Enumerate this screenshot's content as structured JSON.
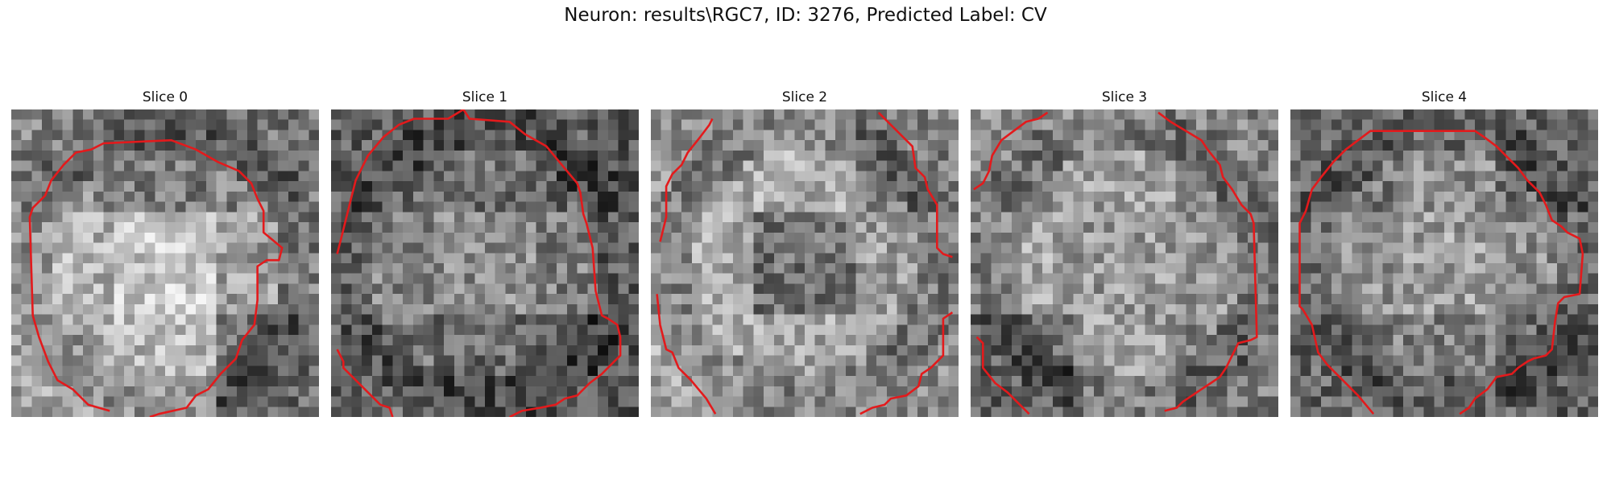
{
  "figure": {
    "title": "Neuron: results\\RGC7, ID: 3276, Predicted Label: CV"
  },
  "colors": {
    "contour": "#e31a1c"
  },
  "panels": [
    {
      "title": "Slice 0",
      "seed": 11,
      "cells": [
        0.55,
        0.48,
        0.5,
        0.7,
        0.78,
        0.62,
        0.68,
        0.72,
        0.45
      ],
      "contour": [
        [
          [
            0.32,
            0.98
          ],
          [
            0.25,
            0.96
          ],
          [
            0.2,
            0.91
          ],
          [
            0.15,
            0.88
          ],
          [
            0.12,
            0.82
          ],
          [
            0.09,
            0.74
          ],
          [
            0.07,
            0.67
          ],
          [
            0.06,
            0.35
          ],
          [
            0.07,
            0.32
          ],
          [
            0.09,
            0.3
          ],
          [
            0.11,
            0.28
          ],
          [
            0.13,
            0.23
          ],
          [
            0.17,
            0.18
          ],
          [
            0.21,
            0.14
          ],
          [
            0.26,
            0.13
          ],
          [
            0.3,
            0.11
          ],
          [
            0.52,
            0.1
          ],
          [
            0.6,
            0.13
          ],
          [
            0.67,
            0.17
          ],
          [
            0.74,
            0.2
          ],
          [
            0.78,
            0.24
          ],
          [
            0.8,
            0.29
          ],
          [
            0.82,
            0.33
          ],
          [
            0.82,
            0.4
          ],
          [
            0.88,
            0.45
          ],
          [
            0.87,
            0.49
          ],
          [
            0.83,
            0.49
          ],
          [
            0.8,
            0.51
          ],
          [
            0.8,
            0.62
          ],
          [
            0.79,
            0.7
          ],
          [
            0.75,
            0.75
          ],
          [
            0.73,
            0.81
          ],
          [
            0.68,
            0.86
          ],
          [
            0.64,
            0.91
          ],
          [
            0.6,
            0.93
          ],
          [
            0.57,
            0.97
          ],
          [
            0.48,
            0.99
          ],
          [
            0.45,
            1.0
          ]
        ]
      ]
    },
    {
      "title": "Slice 1",
      "seed": 23,
      "cells": [
        0.42,
        0.44,
        0.4,
        0.52,
        0.55,
        0.5,
        0.45,
        0.42,
        0.38
      ],
      "contour": [
        [
          [
            0.02,
            0.47
          ],
          [
            0.03,
            0.43
          ],
          [
            0.06,
            0.31
          ],
          [
            0.08,
            0.23
          ],
          [
            0.12,
            0.15
          ],
          [
            0.17,
            0.09
          ],
          [
            0.22,
            0.05
          ],
          [
            0.27,
            0.03
          ],
          [
            0.38,
            0.03
          ],
          [
            0.43,
            0.0
          ]
        ],
        [
          [
            0.43,
            0.0
          ],
          [
            0.45,
            0.03
          ],
          [
            0.58,
            0.04
          ],
          [
            0.63,
            0.08
          ],
          [
            0.7,
            0.12
          ],
          [
            0.75,
            0.18
          ],
          [
            0.8,
            0.24
          ],
          [
            0.81,
            0.27
          ],
          [
            0.82,
            0.34
          ],
          [
            0.83,
            0.37
          ],
          [
            0.85,
            0.45
          ],
          [
            0.86,
            0.59
          ],
          [
            0.87,
            0.63
          ],
          [
            0.88,
            0.67
          ],
          [
            0.9,
            0.68
          ],
          [
            0.93,
            0.7
          ],
          [
            0.94,
            0.74
          ],
          [
            0.94,
            0.8
          ],
          [
            0.92,
            0.82
          ],
          [
            0.88,
            0.86
          ],
          [
            0.84,
            0.89
          ],
          [
            0.8,
            0.93
          ],
          [
            0.76,
            0.94
          ],
          [
            0.73,
            0.96
          ],
          [
            0.68,
            0.97
          ],
          [
            0.62,
            0.98
          ],
          [
            0.58,
            1.0
          ]
        ],
        [
          [
            0.02,
            0.78
          ],
          [
            0.04,
            0.82
          ],
          [
            0.04,
            0.84
          ],
          [
            0.08,
            0.88
          ],
          [
            0.12,
            0.92
          ],
          [
            0.16,
            0.96
          ],
          [
            0.19,
            0.97
          ],
          [
            0.2,
            1.0
          ]
        ]
      ]
    },
    {
      "title": "Slice 2",
      "seed": 37,
      "cells": [
        0.62,
        0.68,
        0.52,
        0.66,
        0.44,
        0.62,
        0.7,
        0.64,
        0.58
      ],
      "contour": [
        [
          [
            0.03,
            0.43
          ],
          [
            0.05,
            0.35
          ],
          [
            0.05,
            0.25
          ],
          [
            0.07,
            0.21
          ],
          [
            0.1,
            0.18
          ],
          [
            0.12,
            0.14
          ],
          [
            0.16,
            0.09
          ],
          [
            0.19,
            0.05
          ],
          [
            0.2,
            0.03
          ]
        ],
        [
          [
            0.74,
            0.01
          ],
          [
            0.79,
            0.06
          ],
          [
            0.85,
            0.12
          ],
          [
            0.86,
            0.19
          ],
          [
            0.89,
            0.22
          ],
          [
            0.9,
            0.26
          ],
          [
            0.93,
            0.31
          ],
          [
            0.93,
            0.45
          ],
          [
            0.95,
            0.47
          ],
          [
            0.98,
            0.48
          ]
        ],
        [
          [
            0.02,
            0.6
          ],
          [
            0.03,
            0.7
          ],
          [
            0.05,
            0.78
          ],
          [
            0.07,
            0.79
          ],
          [
            0.09,
            0.84
          ],
          [
            0.13,
            0.88
          ],
          [
            0.18,
            0.94
          ],
          [
            0.21,
            0.99
          ]
        ],
        [
          [
            0.98,
            0.66
          ],
          [
            0.95,
            0.68
          ],
          [
            0.95,
            0.8
          ],
          [
            0.91,
            0.84
          ],
          [
            0.88,
            0.86
          ],
          [
            0.87,
            0.9
          ],
          [
            0.83,
            0.93
          ],
          [
            0.78,
            0.94
          ],
          [
            0.76,
            0.96
          ],
          [
            0.72,
            0.97
          ],
          [
            0.68,
            0.99
          ]
        ]
      ]
    },
    {
      "title": "Slice 3",
      "seed": 41,
      "cells": [
        0.58,
        0.62,
        0.55,
        0.64,
        0.6,
        0.58,
        0.4,
        0.62,
        0.52
      ],
      "contour": [
        [
          [
            0.01,
            0.26
          ],
          [
            0.04,
            0.24
          ],
          [
            0.06,
            0.2
          ],
          [
            0.07,
            0.15
          ],
          [
            0.1,
            0.1
          ],
          [
            0.14,
            0.07
          ],
          [
            0.18,
            0.04
          ],
          [
            0.22,
            0.03
          ],
          [
            0.25,
            0.01
          ]
        ],
        [
          [
            0.61,
            0.01
          ],
          [
            0.65,
            0.04
          ],
          [
            0.7,
            0.07
          ],
          [
            0.75,
            0.1
          ],
          [
            0.77,
            0.13
          ],
          [
            0.81,
            0.18
          ],
          [
            0.82,
            0.22
          ],
          [
            0.85,
            0.26
          ],
          [
            0.88,
            0.31
          ],
          [
            0.91,
            0.34
          ],
          [
            0.92,
            0.37
          ],
          [
            0.93,
            0.74
          ],
          [
            0.91,
            0.75
          ],
          [
            0.87,
            0.76
          ],
          [
            0.85,
            0.8
          ],
          [
            0.83,
            0.84
          ],
          [
            0.81,
            0.87
          ],
          [
            0.78,
            0.89
          ],
          [
            0.75,
            0.91
          ],
          [
            0.72,
            0.93
          ],
          [
            0.69,
            0.95
          ],
          [
            0.67,
            0.97
          ],
          [
            0.63,
            0.98
          ]
        ],
        [
          [
            0.02,
            0.74
          ],
          [
            0.04,
            0.76
          ],
          [
            0.04,
            0.84
          ],
          [
            0.08,
            0.89
          ],
          [
            0.12,
            0.92
          ],
          [
            0.15,
            0.95
          ],
          [
            0.17,
            0.97
          ],
          [
            0.19,
            0.99
          ]
        ]
      ]
    },
    {
      "title": "Slice 4",
      "seed": 53,
      "cells": [
        0.48,
        0.55,
        0.44,
        0.58,
        0.62,
        0.55,
        0.44,
        0.5,
        0.42
      ],
      "contour": [
        [
          [
            0.27,
            0.99
          ],
          [
            0.22,
            0.93
          ],
          [
            0.17,
            0.88
          ],
          [
            0.12,
            0.83
          ],
          [
            0.09,
            0.79
          ],
          [
            0.07,
            0.7
          ],
          [
            0.04,
            0.65
          ],
          [
            0.03,
            0.64
          ],
          [
            0.03,
            0.37
          ],
          [
            0.05,
            0.33
          ],
          [
            0.07,
            0.26
          ],
          [
            0.1,
            0.22
          ],
          [
            0.14,
            0.17
          ],
          [
            0.18,
            0.13
          ],
          [
            0.22,
            0.1
          ],
          [
            0.26,
            0.07
          ],
          [
            0.6,
            0.07
          ],
          [
            0.63,
            0.09
          ],
          [
            0.67,
            0.12
          ],
          [
            0.72,
            0.17
          ],
          [
            0.74,
            0.19
          ],
          [
            0.77,
            0.23
          ],
          [
            0.81,
            0.27
          ],
          [
            0.83,
            0.31
          ],
          [
            0.85,
            0.36
          ],
          [
            0.88,
            0.38
          ],
          [
            0.9,
            0.4
          ],
          [
            0.94,
            0.42
          ],
          [
            0.95,
            0.47
          ],
          [
            0.94,
            0.6
          ],
          [
            0.89,
            0.61
          ],
          [
            0.87,
            0.63
          ],
          [
            0.86,
            0.69
          ],
          [
            0.85,
            0.78
          ],
          [
            0.83,
            0.8
          ],
          [
            0.79,
            0.81
          ],
          [
            0.77,
            0.82
          ],
          [
            0.74,
            0.84
          ],
          [
            0.72,
            0.86
          ],
          [
            0.67,
            0.87
          ],
          [
            0.64,
            0.91
          ],
          [
            0.6,
            0.94
          ],
          [
            0.58,
            0.97
          ],
          [
            0.55,
            0.99
          ]
        ]
      ]
    }
  ]
}
